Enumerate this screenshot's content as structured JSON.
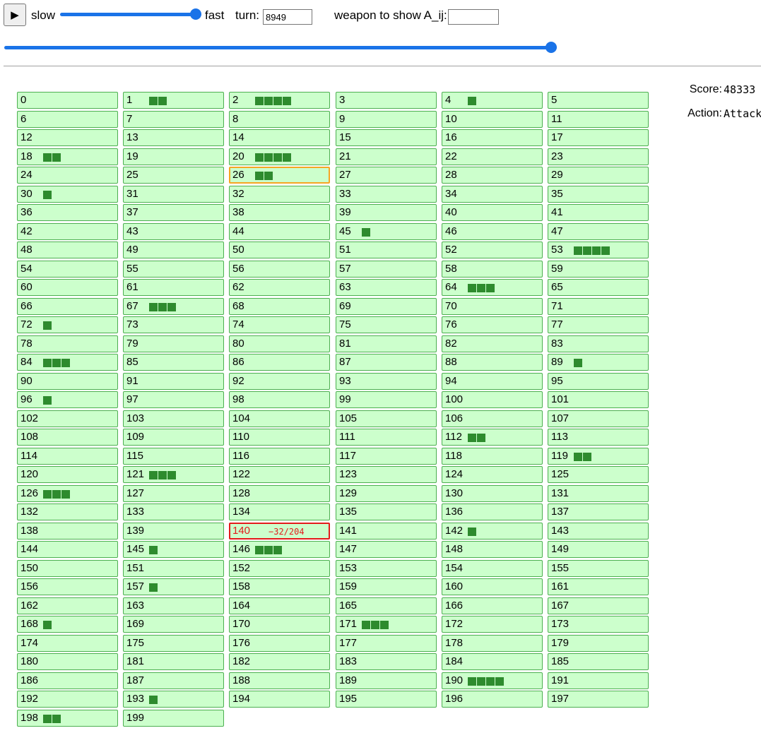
{
  "controls": {
    "play_icon": "▶",
    "play_icon_name": "play-icon",
    "slow_label": "slow",
    "fast_label": "fast",
    "speed_level": 1.0,
    "turn_label": "turn:",
    "turn_value": "8949",
    "weapon_label": "weapon to show A_ij:",
    "weapon_value": "",
    "turn_slider_level": 1.0
  },
  "status": {
    "score_label": "Score:",
    "score_value": "48333",
    "action_label": "Action:",
    "action_value": "Attack"
  },
  "colors": {
    "cell_bg": "#ccffcc",
    "cell_border": "#4caf50",
    "block": "#2e8b2e",
    "selected_border": "#f5a623",
    "attacked_border": "#e31b1b",
    "accent": "#1a73e8"
  },
  "grid": {
    "columns": 6,
    "selected": 26,
    "attacked": 140,
    "attack_text": "−32/204",
    "cells": [
      {
        "n": "0",
        "b": 0
      },
      {
        "n": "1",
        "b": 2
      },
      {
        "n": "2",
        "b": 4
      },
      {
        "n": "3",
        "b": 0
      },
      {
        "n": "4",
        "b": 1
      },
      {
        "n": "5",
        "b": 0
      },
      {
        "n": "6",
        "b": 0
      },
      {
        "n": "7",
        "b": 0
      },
      {
        "n": "8",
        "b": 0
      },
      {
        "n": "9",
        "b": 0
      },
      {
        "n": "10",
        "b": 0
      },
      {
        "n": "11",
        "b": 0
      },
      {
        "n": "12",
        "b": 0
      },
      {
        "n": "13",
        "b": 0
      },
      {
        "n": "14",
        "b": 0
      },
      {
        "n": "15",
        "b": 0
      },
      {
        "n": "16",
        "b": 0
      },
      {
        "n": "17",
        "b": 0
      },
      {
        "n": "18",
        "b": 2
      },
      {
        "n": "19",
        "b": 0
      },
      {
        "n": "20",
        "b": 4
      },
      {
        "n": "21",
        "b": 0
      },
      {
        "n": "22",
        "b": 0
      },
      {
        "n": "23",
        "b": 0
      },
      {
        "n": "24",
        "b": 0
      },
      {
        "n": "25",
        "b": 0
      },
      {
        "n": "26",
        "b": 2
      },
      {
        "n": "27",
        "b": 0
      },
      {
        "n": "28",
        "b": 0
      },
      {
        "n": "29",
        "b": 0
      },
      {
        "n": "30",
        "b": 1
      },
      {
        "n": "31",
        "b": 0
      },
      {
        "n": "32",
        "b": 0
      },
      {
        "n": "33",
        "b": 0
      },
      {
        "n": "34",
        "b": 0
      },
      {
        "n": "35",
        "b": 0
      },
      {
        "n": "36",
        "b": 0
      },
      {
        "n": "37",
        "b": 0
      },
      {
        "n": "38",
        "b": 0
      },
      {
        "n": "39",
        "b": 0
      },
      {
        "n": "40",
        "b": 0
      },
      {
        "n": "41",
        "b": 0
      },
      {
        "n": "42",
        "b": 0
      },
      {
        "n": "43",
        "b": 0
      },
      {
        "n": "44",
        "b": 0
      },
      {
        "n": "45",
        "b": 1
      },
      {
        "n": "46",
        "b": 0
      },
      {
        "n": "47",
        "b": 0
      },
      {
        "n": "48",
        "b": 0
      },
      {
        "n": "49",
        "b": 0
      },
      {
        "n": "50",
        "b": 0
      },
      {
        "n": "51",
        "b": 0
      },
      {
        "n": "52",
        "b": 0
      },
      {
        "n": "53",
        "b": 4
      },
      {
        "n": "54",
        "b": 0
      },
      {
        "n": "55",
        "b": 0
      },
      {
        "n": "56",
        "b": 0
      },
      {
        "n": "57",
        "b": 0
      },
      {
        "n": "58",
        "b": 0
      },
      {
        "n": "59",
        "b": 0
      },
      {
        "n": "60",
        "b": 0
      },
      {
        "n": "61",
        "b": 0
      },
      {
        "n": "62",
        "b": 0
      },
      {
        "n": "63",
        "b": 0
      },
      {
        "n": "64",
        "b": 3
      },
      {
        "n": "65",
        "b": 0
      },
      {
        "n": "66",
        "b": 0
      },
      {
        "n": "67",
        "b": 3
      },
      {
        "n": "68",
        "b": 0
      },
      {
        "n": "69",
        "b": 0
      },
      {
        "n": "70",
        "b": 0
      },
      {
        "n": "71",
        "b": 0
      },
      {
        "n": "72",
        "b": 1
      },
      {
        "n": "73",
        "b": 0
      },
      {
        "n": "74",
        "b": 0
      },
      {
        "n": "75",
        "b": 0
      },
      {
        "n": "76",
        "b": 0
      },
      {
        "n": "77",
        "b": 0
      },
      {
        "n": "78",
        "b": 0
      },
      {
        "n": "79",
        "b": 0
      },
      {
        "n": "80",
        "b": 0
      },
      {
        "n": "81",
        "b": 0
      },
      {
        "n": "82",
        "b": 0
      },
      {
        "n": "83",
        "b": 0
      },
      {
        "n": "84",
        "b": 3
      },
      {
        "n": "85",
        "b": 0
      },
      {
        "n": "86",
        "b": 0
      },
      {
        "n": "87",
        "b": 0
      },
      {
        "n": "88",
        "b": 0
      },
      {
        "n": "89",
        "b": 1
      },
      {
        "n": "90",
        "b": 0
      },
      {
        "n": "91",
        "b": 0
      },
      {
        "n": "92",
        "b": 0
      },
      {
        "n": "93",
        "b": 0
      },
      {
        "n": "94",
        "b": 0
      },
      {
        "n": "95",
        "b": 0
      },
      {
        "n": "96",
        "b": 1
      },
      {
        "n": "97",
        "b": 0
      },
      {
        "n": "98",
        "b": 0
      },
      {
        "n": "99",
        "b": 0
      },
      {
        "n": "100",
        "b": 0
      },
      {
        "n": "101",
        "b": 0
      },
      {
        "n": "102",
        "b": 0
      },
      {
        "n": "103",
        "b": 0
      },
      {
        "n": "104",
        "b": 0
      },
      {
        "n": "105",
        "b": 0
      },
      {
        "n": "106",
        "b": 0
      },
      {
        "n": "107",
        "b": 0
      },
      {
        "n": "108",
        "b": 0
      },
      {
        "n": "109",
        "b": 0
      },
      {
        "n": "110",
        "b": 0
      },
      {
        "n": "111",
        "b": 0
      },
      {
        "n": "112",
        "b": 2
      },
      {
        "n": "113",
        "b": 0
      },
      {
        "n": "114",
        "b": 0
      },
      {
        "n": "115",
        "b": 0
      },
      {
        "n": "116",
        "b": 0
      },
      {
        "n": "117",
        "b": 0
      },
      {
        "n": "118",
        "b": 0
      },
      {
        "n": "119",
        "b": 2
      },
      {
        "n": "120",
        "b": 0
      },
      {
        "n": "121",
        "b": 3
      },
      {
        "n": "122",
        "b": 0
      },
      {
        "n": "123",
        "b": 0
      },
      {
        "n": "124",
        "b": 0
      },
      {
        "n": "125",
        "b": 0
      },
      {
        "n": "126",
        "b": 3
      },
      {
        "n": "127",
        "b": 0
      },
      {
        "n": "128",
        "b": 0
      },
      {
        "n": "129",
        "b": 0
      },
      {
        "n": "130",
        "b": 0
      },
      {
        "n": "131",
        "b": 0
      },
      {
        "n": "132",
        "b": 0
      },
      {
        "n": "133",
        "b": 0
      },
      {
        "n": "134",
        "b": 0
      },
      {
        "n": "135",
        "b": 0
      },
      {
        "n": "136",
        "b": 0
      },
      {
        "n": "137",
        "b": 0
      },
      {
        "n": "138",
        "b": 0
      },
      {
        "n": "139",
        "b": 0
      },
      {
        "n": "140",
        "b": 0
      },
      {
        "n": "141",
        "b": 0
      },
      {
        "n": "142",
        "b": 1
      },
      {
        "n": "143",
        "b": 0
      },
      {
        "n": "144",
        "b": 0
      },
      {
        "n": "145",
        "b": 1
      },
      {
        "n": "146",
        "b": 3
      },
      {
        "n": "147",
        "b": 0
      },
      {
        "n": "148",
        "b": 0
      },
      {
        "n": "149",
        "b": 0
      },
      {
        "n": "150",
        "b": 0
      },
      {
        "n": "151",
        "b": 0
      },
      {
        "n": "152",
        "b": 0
      },
      {
        "n": "153",
        "b": 0
      },
      {
        "n": "154",
        "b": 0
      },
      {
        "n": "155",
        "b": 0
      },
      {
        "n": "156",
        "b": 0
      },
      {
        "n": "157",
        "b": 1
      },
      {
        "n": "158",
        "b": 0
      },
      {
        "n": "159",
        "b": 0
      },
      {
        "n": "160",
        "b": 0
      },
      {
        "n": "161",
        "b": 0
      },
      {
        "n": "162",
        "b": 0
      },
      {
        "n": "163",
        "b": 0
      },
      {
        "n": "164",
        "b": 0
      },
      {
        "n": "165",
        "b": 0
      },
      {
        "n": "166",
        "b": 0
      },
      {
        "n": "167",
        "b": 0
      },
      {
        "n": "168",
        "b": 1
      },
      {
        "n": "169",
        "b": 0
      },
      {
        "n": "170",
        "b": 0
      },
      {
        "n": "171",
        "b": 3
      },
      {
        "n": "172",
        "b": 0
      },
      {
        "n": "173",
        "b": 0
      },
      {
        "n": "174",
        "b": 0
      },
      {
        "n": "175",
        "b": 0
      },
      {
        "n": "176",
        "b": 0
      },
      {
        "n": "177",
        "b": 0
      },
      {
        "n": "178",
        "b": 0
      },
      {
        "n": "179",
        "b": 0
      },
      {
        "n": "180",
        "b": 0
      },
      {
        "n": "181",
        "b": 0
      },
      {
        "n": "182",
        "b": 0
      },
      {
        "n": "183",
        "b": 0
      },
      {
        "n": "184",
        "b": 0
      },
      {
        "n": "185",
        "b": 0
      },
      {
        "n": "186",
        "b": 0
      },
      {
        "n": "187",
        "b": 0
      },
      {
        "n": "188",
        "b": 0
      },
      {
        "n": "189",
        "b": 0
      },
      {
        "n": "190",
        "b": 4
      },
      {
        "n": "191",
        "b": 0
      },
      {
        "n": "192",
        "b": 0
      },
      {
        "n": "193",
        "b": 1
      },
      {
        "n": "194",
        "b": 0
      },
      {
        "n": "195",
        "b": 0
      },
      {
        "n": "196",
        "b": 0
      },
      {
        "n": "197",
        "b": 0
      },
      {
        "n": "198",
        "b": 2
      },
      {
        "n": "199",
        "b": 0
      }
    ]
  }
}
